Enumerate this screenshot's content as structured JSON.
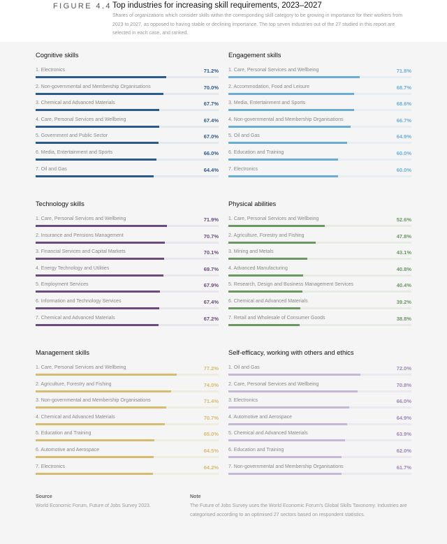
{
  "header": {
    "figure_label": "FIGURE 4.4",
    "title": "Top industries for increasing skill requirements, 2023–2027",
    "subtitle": "Shares of organizations which consider skills within the corresponding skill category to be growing in importance for their workers from 2023 to 2027, as opposed to having stable or declining importance. The top seven industries out of the 27 studied in this report are selected in each case, and ranked."
  },
  "chart_data": [
    {
      "type": "bar",
      "orientation": "horizontal",
      "title": "Cognitive skills",
      "color": "#2b5b8c",
      "track_color": "#e3e7ee",
      "xlim": [
        0,
        100
      ],
      "categories": [
        "1. Electronics",
        "2. Non-governmental and Membership Organisations",
        "3. Chemical and Advanced Materials",
        "4. Care, Personal Services and Wellbeing",
        "5. Government and Public Sector",
        "6. Media, Entertainment and Sports",
        "7. Oil and Gas"
      ],
      "values": [
        71.2,
        70.0,
        67.7,
        67.4,
        67.0,
        66.0,
        64.4
      ],
      "labels": [
        "71.2%",
        "70.0%",
        "67.7%",
        "67.4%",
        "67.0%",
        "66.0%",
        "64.4%"
      ]
    },
    {
      "type": "bar",
      "orientation": "horizontal",
      "title": "Engagement skills",
      "color": "#6aaed6",
      "track_color": "#e6eef4",
      "xlim": [
        0,
        100
      ],
      "categories": [
        "1. Care, Personal Services and Wellbeing",
        "2. Accommodation, Food and Leisure",
        "3. Media, Entertainment and Sports",
        "4. Non-governmental and Membership Organisations",
        " 5. Oil and Gas",
        "6. Education and Training",
        "7. Electronics"
      ],
      "values": [
        71.8,
        68.7,
        68.6,
        66.7,
        64.9,
        60.0,
        60.0
      ],
      "labels": [
        "71.8%",
        "68.7%",
        "68.6%",
        "66.7%",
        "64.9%",
        "60.0%",
        "60.0%"
      ]
    },
    {
      "type": "bar",
      "orientation": "horizontal",
      "title": "Technology skills",
      "color": "#6b4a7c",
      "track_color": "#e8e5ec",
      "xlim": [
        0,
        100
      ],
      "categories": [
        "1. Care, Personal Services and Wellbeing",
        "2. Insurance and Pensions Management",
        "3. Financial Services and Capital Markets",
        "4. Energy Technology and Utilities",
        "5. Employment Services",
        "6. Information and Technology Services",
        "7. Chemical and Advanced Materials"
      ],
      "values": [
        71.9,
        70.7,
        70.1,
        69.7,
        67.9,
        67.4,
        67.2
      ],
      "labels": [
        "71.9%",
        "70.7%",
        "70.1%",
        "69.7%",
        "67.9%",
        "67.4%",
        "67.2%"
      ]
    },
    {
      "type": "bar",
      "orientation": "horizontal",
      "title": "Physical abilities",
      "color": "#6a9762",
      "track_color": "#e6ebe4",
      "xlim": [
        0,
        100
      ],
      "categories": [
        "1. Care, Personal Services and Wellbeing",
        "2. Agriculture, Forestry and Fishing",
        "3. Mining and Metals",
        "4. Advanced Manufacturing",
        "5. Research, Design and Business Management Services",
        "6. Chemical and Advanced Materials",
        "7. Retail and Wholesale of Consumer Goods"
      ],
      "values": [
        52.6,
        47.8,
        43.1,
        40.8,
        40.4,
        39.2,
        38.8
      ],
      "labels": [
        "52.6%",
        "47.8%",
        "43.1%",
        "40.8%",
        "40.4%",
        "39.2%",
        "38.8%"
      ]
    },
    {
      "type": "bar",
      "orientation": "horizontal",
      "title": "Management skills",
      "color": "#d6bc6e",
      "track_color": "#efece0",
      "xlim": [
        0,
        100
      ],
      "categories": [
        "1. Care, Personal Services and Wellbeing",
        "2. Agriculture, Forestry and Fishing",
        "3. Non-governmental and Membership Organisations",
        "4. Chemical and Advanced Materials",
        "5. Education and Training",
        "6. Automotive and Aerospace",
        "7. Electronics"
      ],
      "values": [
        77.2,
        74.0,
        71.4,
        70.7,
        65.0,
        64.5,
        64.2
      ],
      "labels": [
        "77.2%",
        "74.0%",
        "71.4%",
        "70.7%",
        "65.0%",
        "64.5%",
        "64.2%"
      ]
    },
    {
      "type": "bar",
      "orientation": "horizontal",
      "title": "Self-efficacy, working with others and ethics",
      "color": "#c7b7d6",
      "track_color": "#ebe8ef",
      "value_color": "#9c86b3",
      "xlim": [
        0,
        100
      ],
      "categories": [
        "1. Oil and Gas",
        "2. Care, Personal Services and Wellbeing",
        "3. Electronics",
        "4. Automotive and Aerospace",
        "5. Chemical and Advanced Materials",
        "6. Education and Training",
        "7. Non-governmental and Membership Organisations"
      ],
      "values": [
        72.0,
        70.8,
        66.0,
        64.9,
        63.9,
        62.0,
        61.7
      ],
      "labels": [
        "72.0%",
        "70.8%",
        "66.0%",
        "64.9%",
        "63.9%",
        "62.0%",
        "61.7%"
      ]
    }
  ],
  "footer": {
    "source_heading": "Source",
    "source_text": "World Economic Forum, Future of Jobs Survey 2023.",
    "note_heading": "Note",
    "note_text": "The Future of Jobs Survey uses the World Economic Forum's Global Skills Taxonomy. Industries are categorised according to an optimised 27 sectors based on respondent statistics."
  }
}
